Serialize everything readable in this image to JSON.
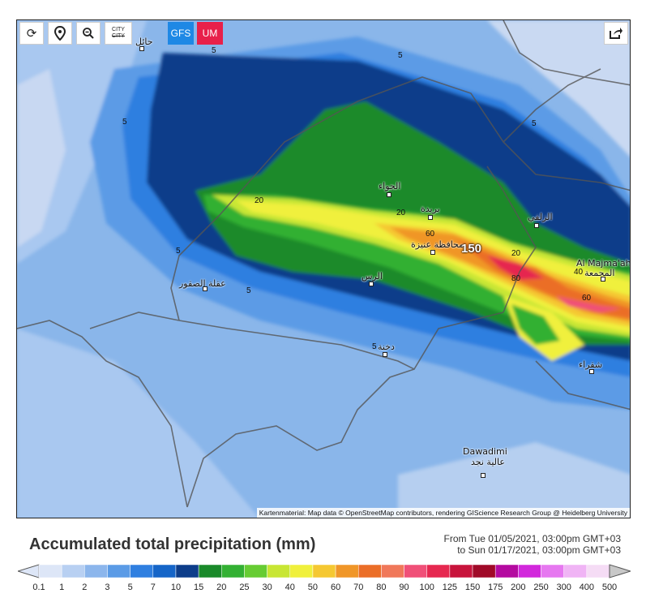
{
  "toolbar": {
    "refresh_icon": "refresh-icon",
    "location_icon": "map-pin-icon",
    "zoom_icon": "zoom-out-icon",
    "city_toggle": "CITY",
    "model_gfs": "GFS",
    "model_um": "UM",
    "share_icon": "share-icon",
    "colors": {
      "gfs": "#1e88e5",
      "um": "#e8204a"
    }
  },
  "map": {
    "cities": [
      {
        "id": "hail",
        "label": "حائل"
      },
      {
        "id": "jawa",
        "label": "الجواء"
      },
      {
        "id": "buraydah",
        "label": "بريدة"
      },
      {
        "id": "unaizah",
        "label": "محافظة عنيزة"
      },
      {
        "id": "zulfi",
        "label": "الزلفي"
      },
      {
        "id": "majmaah",
        "label": "Al Majma'ah"
      },
      {
        "id": "majmaah_ar",
        "label": "المجمعة"
      },
      {
        "id": "uqlat",
        "label": "عقلة الصقور"
      },
      {
        "id": "rass",
        "label": "الرس"
      },
      {
        "id": "dukhnah",
        "label": "دخنة"
      },
      {
        "id": "shaqra",
        "label": "شقراء"
      },
      {
        "id": "dawadimi",
        "label": "Dawadimi"
      },
      {
        "id": "dawadimi_ar",
        "label": "عالية نجد"
      }
    ],
    "contour_labels": [
      "5",
      "5",
      "5",
      "5",
      "5",
      "5",
      "5",
      "20",
      "20",
      "60",
      "150",
      "20",
      "40",
      "80",
      "60",
      "5"
    ],
    "attribution": "Kartenmaterial: Map data © OpenStreetMap contributors, rendering GIScience Research Group @ Heidelberg University"
  },
  "legend": {
    "title": "Accumulated total precipitation (mm)",
    "period_from": "From Tue 01/05/2021, 03:00pm GMT+03",
    "period_to": "to Sun 01/17/2021, 03:00pm GMT+03",
    "ticks": [
      "0.1",
      "1",
      "2",
      "3",
      "5",
      "7",
      "10",
      "15",
      "20",
      "25",
      "30",
      "40",
      "50",
      "60",
      "70",
      "80",
      "90",
      "100",
      "125",
      "150",
      "175",
      "200",
      "250",
      "300",
      "400",
      "500"
    ],
    "colors": [
      "#dde6f7",
      "#b8d0f2",
      "#8cb6ec",
      "#5b9be6",
      "#2f7fe0",
      "#1565c8",
      "#0d3d8a",
      "#1a8a2a",
      "#33b033",
      "#66cc33",
      "#c8e634",
      "#f0f03c",
      "#f5c832",
      "#f09628",
      "#eb6e28",
      "#f0785a",
      "#f05078",
      "#e62850",
      "#c8143c",
      "#a00a28",
      "#b40aa0",
      "#d228dc",
      "#e678f0",
      "#f0b4f5",
      "#f5dcf5",
      "#c8c8c8"
    ]
  }
}
